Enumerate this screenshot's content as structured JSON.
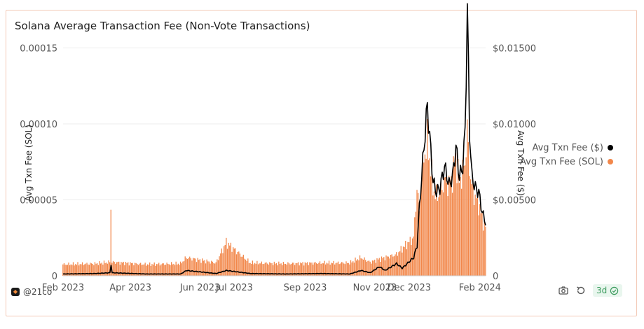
{
  "title": "Solana Average Transaction Fee (Non-Vote Transactions)",
  "footer": {
    "handle": "@21co",
    "refresh": "3d"
  },
  "icons": {
    "camera": "camera-icon",
    "reload": "reload-icon",
    "check": "check-circle-icon",
    "logo": "21co-logo-icon"
  },
  "colors": {
    "fee_usd": "#000000",
    "fee_sol": "#f2874a",
    "card_border": "#f3c9b6"
  },
  "chart_data": {
    "type": "bar",
    "start_date": "2023-02-01",
    "end_date": "2024-02-06",
    "x_ticks": [
      "Feb 2023",
      "Apr 2023",
      "Jun 2023",
      "Jul 2023",
      "Sep 2023",
      "Nov 2023",
      "Dec 2023",
      "Feb 2024"
    ],
    "left_axis": {
      "label": "Avg Txn Fee (SOL)",
      "range": [
        0,
        0.00017
      ],
      "ticks": [
        "0",
        "0.00005",
        "0.00010",
        "0.00015"
      ]
    },
    "right_axis": {
      "label": "Avg Txn Fee ($)",
      "range": [
        0,
        0.017
      ],
      "ticks": [
        "0",
        "$0.00500",
        "$0.01000",
        "$0.01500"
      ]
    },
    "legend_position": "right",
    "grid": true,
    "series": [
      {
        "name": "Avg Txn Fee ($)",
        "type": "line",
        "axis": "right",
        "points": [
          [
            "2023-02-01",
            0.00012
          ],
          [
            "2023-03-01",
            0.00015
          ],
          [
            "2023-03-14",
            0.0002
          ],
          [
            "2023-03-15",
            0.00075
          ],
          [
            "2023-03-16",
            0.0002
          ],
          [
            "2023-04-15",
            0.00012
          ],
          [
            "2023-05-15",
            0.00012
          ],
          [
            "2023-05-20",
            0.00035
          ],
          [
            "2023-06-15",
            0.00015
          ],
          [
            "2023-06-24",
            0.00035
          ],
          [
            "2023-07-15",
            0.00015
          ],
          [
            "2023-08-15",
            0.00012
          ],
          [
            "2023-09-15",
            0.00015
          ],
          [
            "2023-10-10",
            0.00012
          ],
          [
            "2023-10-20",
            0.00035
          ],
          [
            "2023-10-28",
            0.0002
          ],
          [
            "2023-11-05",
            0.0006
          ],
          [
            "2023-11-10",
            0.00035
          ],
          [
            "2023-11-20",
            0.0008
          ],
          [
            "2023-11-25",
            0.0005
          ],
          [
            "2023-12-05",
            0.0012
          ],
          [
            "2023-12-08",
            0.002
          ],
          [
            "2023-12-10",
            0.0045
          ],
          [
            "2023-12-12",
            0.0065
          ],
          [
            "2023-12-14",
            0.0085
          ],
          [
            "2023-12-17",
            0.0112
          ],
          [
            "2023-12-20",
            0.0082
          ],
          [
            "2023-12-22",
            0.0062
          ],
          [
            "2023-12-25",
            0.0055
          ],
          [
            "2023-12-28",
            0.0058
          ],
          [
            "2024-01-01",
            0.0072
          ],
          [
            "2024-01-05",
            0.006
          ],
          [
            "2024-01-08",
            0.0065
          ],
          [
            "2024-01-11",
            0.0085
          ],
          [
            "2024-01-14",
            0.0065
          ],
          [
            "2024-01-17",
            0.0072
          ],
          [
            "2024-01-19",
            0.0095
          ],
          [
            "2024-01-21",
            0.0175
          ],
          [
            "2024-01-23",
            0.0095
          ],
          [
            "2024-01-25",
            0.0065
          ],
          [
            "2024-01-28",
            0.0058
          ],
          [
            "2024-01-31",
            0.0055
          ],
          [
            "2024-02-03",
            0.0042
          ],
          [
            "2024-02-06",
            0.0035
          ]
        ]
      },
      {
        "name": "Avg Txn Fee (SOL)",
        "type": "bar",
        "axis": "left",
        "points": [
          [
            "2023-02-01",
            7.5e-06
          ],
          [
            "2023-03-01",
            8e-06
          ],
          [
            "2023-03-14",
            9e-06
          ],
          [
            "2023-03-15",
            4.6e-05
          ],
          [
            "2023-03-16",
            9e-06
          ],
          [
            "2023-04-15",
            7.5e-06
          ],
          [
            "2023-05-15",
            8e-06
          ],
          [
            "2023-05-20",
            1.2e-05
          ],
          [
            "2023-06-15",
            8.5e-06
          ],
          [
            "2023-06-24",
            2.2e-05
          ],
          [
            "2023-07-15",
            8.5e-06
          ],
          [
            "2023-08-15",
            8e-06
          ],
          [
            "2023-09-15",
            8.5e-06
          ],
          [
            "2023-10-10",
            8.5e-06
          ],
          [
            "2023-10-20",
            1.2e-05
          ],
          [
            "2023-10-28",
            9e-06
          ],
          [
            "2023-11-05",
            1.1e-05
          ],
          [
            "2023-11-10",
            1.2e-05
          ],
          [
            "2023-11-20",
            1.4e-05
          ],
          [
            "2023-11-25",
            1.8e-05
          ],
          [
            "2023-12-05",
            2.5e-05
          ],
          [
            "2023-12-08",
            5.8e-05
          ],
          [
            "2023-12-10",
            4.2e-05
          ],
          [
            "2023-12-12",
            6.5e-05
          ],
          [
            "2023-12-14",
            7.8e-05
          ],
          [
            "2023-12-17",
            8.8e-05
          ],
          [
            "2023-12-20",
            7.2e-05
          ],
          [
            "2023-12-22",
            5.8e-05
          ],
          [
            "2023-12-25",
            5.2e-05
          ],
          [
            "2023-12-28",
            5.5e-05
          ],
          [
            "2024-01-01",
            6.2e-05
          ],
          [
            "2024-01-05",
            6e-05
          ],
          [
            "2024-01-08",
            6.5e-05
          ],
          [
            "2024-01-11",
            7.8e-05
          ],
          [
            "2024-01-14",
            6.2e-05
          ],
          [
            "2024-01-17",
            6.8e-05
          ],
          [
            "2024-01-19",
            7.5e-05
          ],
          [
            "2024-01-21",
            9.5e-05
          ],
          [
            "2024-01-23",
            7.2e-05
          ],
          [
            "2024-01-25",
            5.8e-05
          ],
          [
            "2024-01-28",
            5.2e-05
          ],
          [
            "2024-01-31",
            4.8e-05
          ],
          [
            "2024-02-03",
            3.8e-05
          ],
          [
            "2024-02-06",
            3.2e-05
          ]
        ]
      }
    ]
  }
}
